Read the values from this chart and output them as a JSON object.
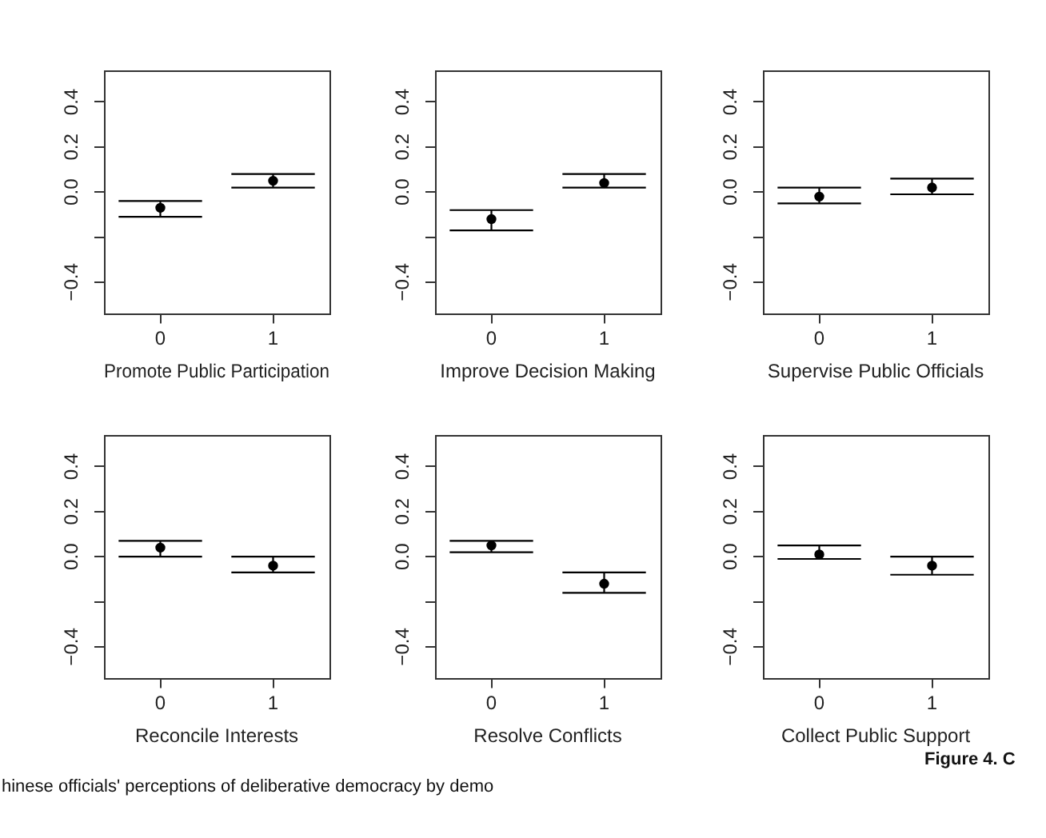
{
  "chart_data": [
    {
      "type": "scatter",
      "categories": [
        "0",
        "1"
      ],
      "values": [
        -0.07,
        0.05
      ],
      "errors": [
        [
          -0.11,
          -0.04
        ],
        [
          0.02,
          0.08
        ]
      ],
      "color": "#000000",
      "marker": "circle",
      "xlabel": "Promote Public Participation",
      "ylim": [
        -0.54,
        0.54
      ],
      "yticks": [
        {
          "value": -0.4,
          "label": "−0.4"
        },
        {
          "value": -0.2,
          "label": null
        },
        {
          "value": 0,
          "label": "0.0"
        },
        {
          "value": 0.2,
          "label": "0.2"
        },
        {
          "value": 0.4,
          "label": "0.4"
        }
      ]
    },
    {
      "type": "scatter",
      "categories": [
        "0",
        "1"
      ],
      "values": [
        -0.12,
        0.04
      ],
      "errors": [
        [
          -0.17,
          -0.08
        ],
        [
          0.02,
          0.08
        ]
      ],
      "color": "#000000",
      "marker": "circle",
      "xlabel": "Improve Decision Making",
      "ylim": [
        -0.54,
        0.54
      ],
      "yticks": [
        {
          "value": -0.4,
          "label": "−0.4"
        },
        {
          "value": -0.2,
          "label": null
        },
        {
          "value": 0,
          "label": "0.0"
        },
        {
          "value": 0.2,
          "label": "0.2"
        },
        {
          "value": 0.4,
          "label": "0.4"
        }
      ]
    },
    {
      "type": "scatter",
      "categories": [
        "0",
        "1"
      ],
      "values": [
        -0.02,
        0.02
      ],
      "errors": [
        [
          -0.05,
          0.02
        ],
        [
          -0.01,
          0.06
        ]
      ],
      "color": "#000000",
      "marker": "circle",
      "xlabel": "Supervise Public Officials",
      "ylim": [
        -0.54,
        0.54
      ],
      "yticks": [
        {
          "value": -0.4,
          "label": "−0.4"
        },
        {
          "value": -0.2,
          "label": null
        },
        {
          "value": 0,
          "label": "0.0"
        },
        {
          "value": 0.2,
          "label": "0.2"
        },
        {
          "value": 0.4,
          "label": "0.4"
        }
      ]
    },
    {
      "type": "scatter",
      "categories": [
        "0",
        "1"
      ],
      "values": [
        0.04,
        -0.04
      ],
      "errors": [
        [
          0.0,
          0.07
        ],
        [
          -0.07,
          0.0
        ]
      ],
      "color": "#000000",
      "marker": "circle",
      "xlabel": "Reconcile Interests",
      "ylim": [
        -0.54,
        0.54
      ],
      "yticks": [
        {
          "value": -0.4,
          "label": "−0.4"
        },
        {
          "value": -0.2,
          "label": null
        },
        {
          "value": 0,
          "label": "0.0"
        },
        {
          "value": 0.2,
          "label": "0.2"
        },
        {
          "value": 0.4,
          "label": "0.4"
        }
      ]
    },
    {
      "type": "scatter",
      "categories": [
        "0",
        "1"
      ],
      "values": [
        0.05,
        -0.12
      ],
      "errors": [
        [
          0.02,
          0.07
        ],
        [
          -0.16,
          -0.07
        ]
      ],
      "color": "#000000",
      "marker": "circle",
      "xlabel": "Resolve Conflicts",
      "ylim": [
        -0.54,
        0.54
      ],
      "yticks": [
        {
          "value": -0.4,
          "label": "−0.4"
        },
        {
          "value": -0.2,
          "label": null
        },
        {
          "value": 0,
          "label": "0.0"
        },
        {
          "value": 0.2,
          "label": "0.2"
        },
        {
          "value": 0.4,
          "label": "0.4"
        }
      ]
    },
    {
      "type": "scatter",
      "categories": [
        "0",
        "1"
      ],
      "values": [
        0.01,
        -0.04
      ],
      "errors": [
        [
          -0.01,
          0.05
        ],
        [
          -0.08,
          0.0
        ]
      ],
      "color": "#000000",
      "marker": "circle",
      "xlabel": "Collect Public Support",
      "ylim": [
        -0.54,
        0.54
      ],
      "yticks": [
        {
          "value": -0.4,
          "label": "−0.4"
        },
        {
          "value": -0.2,
          "label": null
        },
        {
          "value": 0,
          "label": "0.0"
        },
        {
          "value": 0.2,
          "label": "0.2"
        },
        {
          "value": 0.4,
          "label": "0.4"
        }
      ],
      "annotations": [
        "Figure 4. C",
        "hinese officials' perceptions of deliberative democracy by demo"
      ]
    }
  ]
}
